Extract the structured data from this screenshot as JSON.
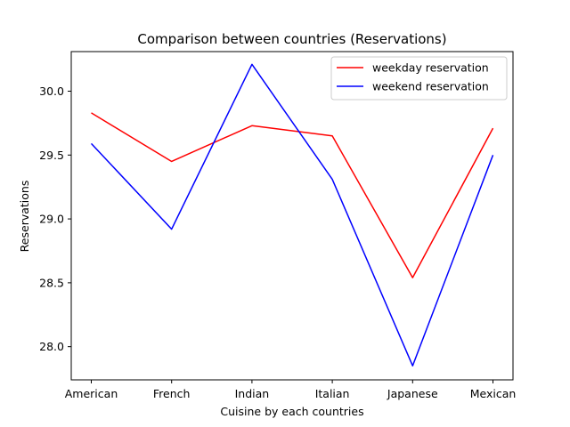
{
  "chart_data": {
    "type": "line",
    "title": "Comparison between countries (Reservations)",
    "xlabel": "Cuisine by each countries",
    "ylabel": "Reservations",
    "categories": [
      "American",
      "French",
      "Indian",
      "Italian",
      "Japanese",
      "Mexican"
    ],
    "ylim": [
      27.74,
      30.31
    ],
    "yticks": [
      28.0,
      28.5,
      29.0,
      29.5,
      30.0
    ],
    "ytick_labels": [
      "28.0",
      "28.5",
      "29.0",
      "29.5",
      "30.0"
    ],
    "grid": false,
    "legend_position": "top-right",
    "series": [
      {
        "name": "weekday reservation",
        "color": "#ff0000",
        "values": [
          29.83,
          29.45,
          29.73,
          29.65,
          28.54,
          29.71
        ]
      },
      {
        "name": "weekend reservation",
        "color": "#0000ff",
        "values": [
          29.59,
          28.92,
          30.21,
          29.31,
          27.85,
          29.5
        ]
      }
    ]
  }
}
